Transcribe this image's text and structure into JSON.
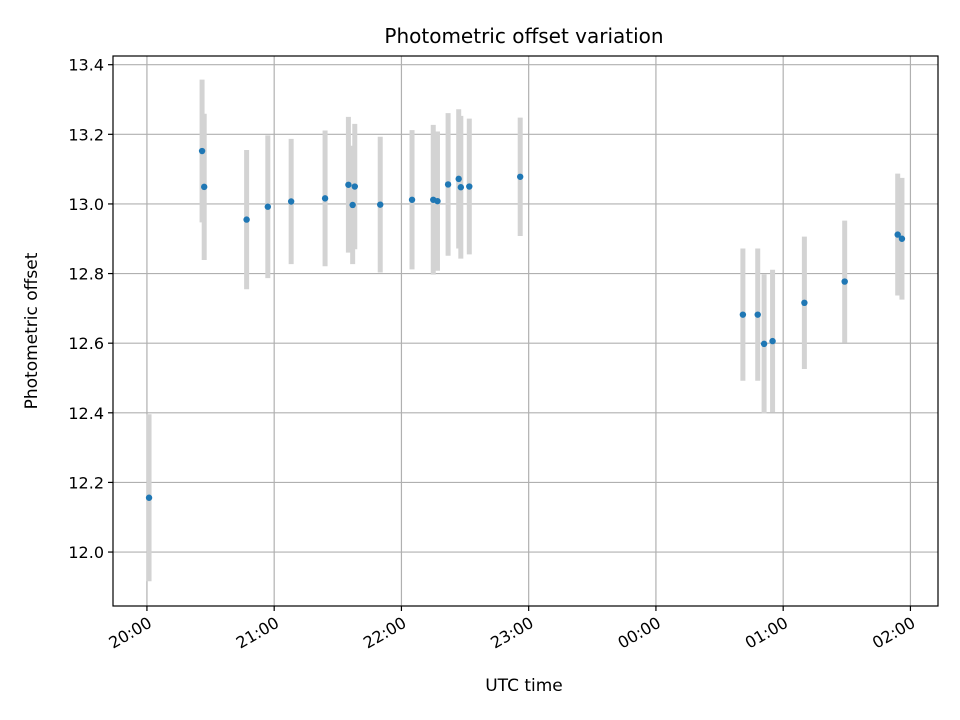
{
  "chart_data": {
    "type": "scatter",
    "title": "Photometric offset variation",
    "xlabel": "UTC time",
    "ylabel": "Photometric offset",
    "x_unit": "UTC time, hours (values after midnight continue past 24)",
    "xlim": [
      "19:44",
      "26:13"
    ],
    "ylim": [
      11.845,
      13.425
    ],
    "grid": true,
    "x_ticks": [
      {
        "value": "20:00",
        "label": "20:00"
      },
      {
        "value": "21:00",
        "label": "21:00"
      },
      {
        "value": "22:00",
        "label": "22:00"
      },
      {
        "value": "23:00",
        "label": "23:00"
      },
      {
        "value": "24:00",
        "label": "00:00"
      },
      {
        "value": "25:00",
        "label": "01:00"
      },
      {
        "value": "26:00",
        "label": "02:00"
      }
    ],
    "y_ticks": [
      {
        "value": 12.0,
        "label": "12.0"
      },
      {
        "value": 12.2,
        "label": "12.2"
      },
      {
        "value": 12.4,
        "label": "12.4"
      },
      {
        "value": 12.6,
        "label": "12.6"
      },
      {
        "value": 12.8,
        "label": "12.8"
      },
      {
        "value": 13.0,
        "label": "13.0"
      },
      {
        "value": 13.2,
        "label": "13.2"
      },
      {
        "value": 13.4,
        "label": "13.4"
      }
    ],
    "colors": {
      "point": "#1f77b4",
      "errorbar": "#d3d3d3",
      "grid": "#b0b0b0"
    },
    "points": [
      {
        "x": "20:01",
        "y": 12.156,
        "err": 0.24
      },
      {
        "x": "20:26",
        "y": 13.152,
        "err": 0.205
      },
      {
        "x": "20:27",
        "y": 13.049,
        "err": 0.21
      },
      {
        "x": "20:47",
        "y": 12.955,
        "err": 0.2
      },
      {
        "x": "20:57",
        "y": 12.992,
        "err": 0.205
      },
      {
        "x": "21:08",
        "y": 13.007,
        "err": 0.18
      },
      {
        "x": "21:24",
        "y": 13.016,
        "err": 0.195
      },
      {
        "x": "21:35",
        "y": 13.055,
        "err": 0.195
      },
      {
        "x": "21:37",
        "y": 12.997,
        "err": 0.17
      },
      {
        "x": "21:38",
        "y": 13.05,
        "err": 0.18
      },
      {
        "x": "21:50",
        "y": 12.998,
        "err": 0.195
      },
      {
        "x": "22:05",
        "y": 13.012,
        "err": 0.2
      },
      {
        "x": "22:15",
        "y": 13.012,
        "err": 0.215
      },
      {
        "x": "22:17",
        "y": 13.008,
        "err": 0.2
      },
      {
        "x": "22:22",
        "y": 13.056,
        "err": 0.205
      },
      {
        "x": "22:27",
        "y": 13.072,
        "err": 0.2
      },
      {
        "x": "22:28",
        "y": 13.048,
        "err": 0.205
      },
      {
        "x": "22:32",
        "y": 13.05,
        "err": 0.195
      },
      {
        "x": "22:56",
        "y": 13.078,
        "err": 0.17
      },
      {
        "x": "24:41",
        "y": 12.682,
        "err": 0.19
      },
      {
        "x": "24:48",
        "y": 12.682,
        "err": 0.19
      },
      {
        "x": "24:51",
        "y": 12.598,
        "err": 0.2
      },
      {
        "x": "24:55",
        "y": 12.606,
        "err": 0.205
      },
      {
        "x": "25:10",
        "y": 12.716,
        "err": 0.19
      },
      {
        "x": "25:29",
        "y": 12.777,
        "err": 0.175
      },
      {
        "x": "25:54",
        "y": 12.912,
        "err": 0.175
      },
      {
        "x": "25:56",
        "y": 12.9,
        "err": 0.175
      }
    ]
  }
}
